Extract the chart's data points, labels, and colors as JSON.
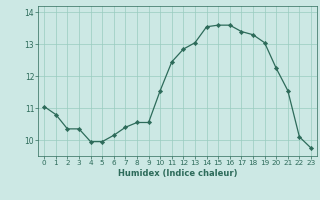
{
  "x": [
    0,
    1,
    2,
    3,
    4,
    5,
    6,
    7,
    8,
    9,
    10,
    11,
    12,
    13,
    14,
    15,
    16,
    17,
    18,
    19,
    20,
    21,
    22,
    23
  ],
  "y": [
    11.05,
    10.8,
    10.35,
    10.35,
    9.95,
    9.95,
    10.15,
    10.4,
    10.55,
    10.55,
    11.55,
    12.45,
    12.85,
    13.05,
    13.55,
    13.6,
    13.6,
    13.4,
    13.3,
    13.05,
    12.25,
    11.55,
    10.1,
    9.75
  ],
  "xlabel": "Humidex (Indice chaleur)",
  "ylim": [
    9.5,
    14.2
  ],
  "xlim": [
    -0.5,
    23.5
  ],
  "bg_color": "#cce8e4",
  "line_color": "#2d6b5a",
  "marker_color": "#2d6b5a",
  "grid_color": "#99ccbf",
  "tick_label_color": "#2d6b5a",
  "axis_color": "#2d6b5a",
  "xlabel_color": "#2d6b5a",
  "yticks": [
    10,
    11,
    12,
    13,
    14
  ],
  "xticks": [
    0,
    1,
    2,
    3,
    4,
    5,
    6,
    7,
    8,
    9,
    10,
    11,
    12,
    13,
    14,
    15,
    16,
    17,
    18,
    19,
    20,
    21,
    22,
    23
  ]
}
